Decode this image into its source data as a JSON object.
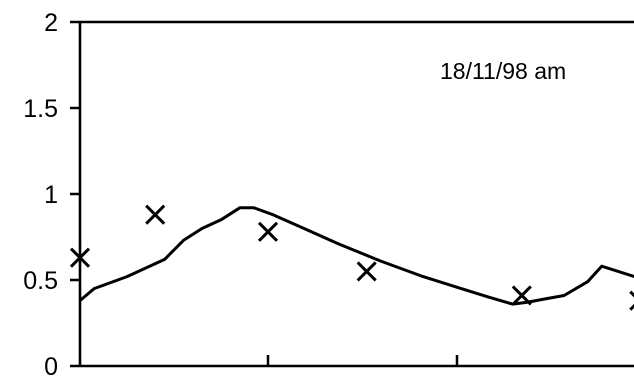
{
  "chart_data": {
    "type": "line",
    "title": "",
    "xlabel": "",
    "ylabel": "",
    "ylim": [
      0,
      2
    ],
    "y_ticks": [
      "0",
      "0.5",
      "1",
      "1.5",
      "2"
    ],
    "x_tick_labels": [],
    "grid": false,
    "legend": "none",
    "annotation": "18/11/98 am",
    "series": [
      {
        "style": "line",
        "color": "#000000",
        "points": [
          {
            "x": 0.0,
            "y": 0.38
          },
          {
            "x": 0.3,
            "y": 0.45
          },
          {
            "x": 1.0,
            "y": 0.52
          },
          {
            "x": 1.4,
            "y": 0.57
          },
          {
            "x": 1.8,
            "y": 0.62
          },
          {
            "x": 2.2,
            "y": 0.73
          },
          {
            "x": 2.6,
            "y": 0.8
          },
          {
            "x": 3.0,
            "y": 0.85
          },
          {
            "x": 3.4,
            "y": 0.92
          },
          {
            "x": 3.7,
            "y": 0.92
          },
          {
            "x": 4.1,
            "y": 0.88
          },
          {
            "x": 4.6,
            "y": 0.82
          },
          {
            "x": 5.5,
            "y": 0.71
          },
          {
            "x": 6.4,
            "y": 0.61
          },
          {
            "x": 7.3,
            "y": 0.52
          },
          {
            "x": 8.0,
            "y": 0.46
          },
          {
            "x": 8.7,
            "y": 0.4
          },
          {
            "x": 9.2,
            "y": 0.36
          },
          {
            "x": 9.5,
            "y": 0.37
          },
          {
            "x": 9.9,
            "y": 0.39
          },
          {
            "x": 10.3,
            "y": 0.41
          },
          {
            "x": 10.8,
            "y": 0.49
          },
          {
            "x": 11.1,
            "y": 0.58
          },
          {
            "x": 11.8,
            "y": 0.52
          }
        ]
      },
      {
        "style": "markers",
        "marker": "x",
        "color": "#000000",
        "points": [
          {
            "x": 0.0,
            "y": 0.63
          },
          {
            "x": 1.6,
            "y": 0.88
          },
          {
            "x": 4.0,
            "y": 0.78
          },
          {
            "x": 6.1,
            "y": 0.55
          },
          {
            "x": 9.4,
            "y": 0.41
          },
          {
            "x": 11.9,
            "y": 0.38
          }
        ]
      }
    ]
  }
}
